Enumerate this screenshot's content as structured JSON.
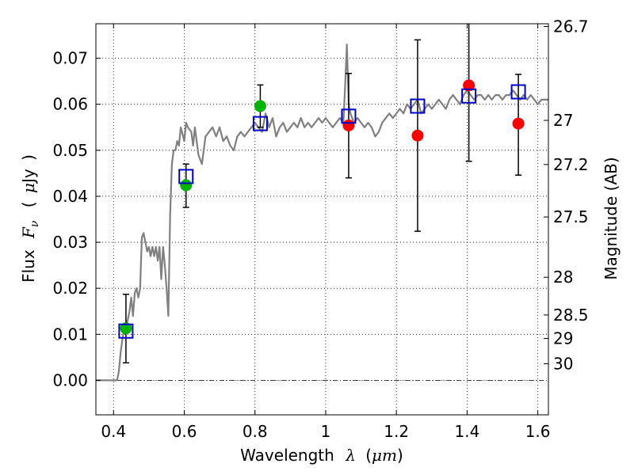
{
  "chart_data": {
    "type": "scatter",
    "xlabel": {
      "prefix": "Wavelength",
      "symbol": "λ",
      "open": "(",
      "unit": "μm",
      "close": ")"
    },
    "ylabel": {
      "prefix": "Flux",
      "symbol": "F",
      "subscript": "ν",
      "open": "(",
      "unit_mu": "μ",
      "unit": "Jy",
      "close": ")"
    },
    "ylabel_right": "Magnitude (AB)",
    "xlim": [
      0.35,
      1.63
    ],
    "ylim": [
      -0.0075,
      0.0775
    ],
    "grid": true,
    "x_ticks": [
      0.4,
      0.6,
      0.8,
      1.0,
      1.2,
      1.4,
      1.6
    ],
    "x_tick_labels": [
      "0.4",
      "0.6",
      "0.8",
      "1",
      "1.2",
      "1.4",
      "1.6"
    ],
    "y_ticks": [
      0.0,
      0.01,
      0.02,
      0.03,
      0.04,
      0.05,
      0.06,
      0.07
    ],
    "y_tick_labels": [
      "0.00",
      "0.01",
      "0.02",
      "0.03",
      "0.04",
      "0.05",
      "0.06",
      "0.07"
    ],
    "right_ticks": [
      {
        "flux": 0.0769,
        "label": "26.7"
      },
      {
        "flux": 0.0565,
        "label": "27"
      },
      {
        "flux": 0.0469,
        "label": "27.2"
      },
      {
        "flux": 0.0355,
        "label": "27.5"
      },
      {
        "flux": 0.0224,
        "label": "28"
      },
      {
        "flux": 0.0142,
        "label": "28.5"
      },
      {
        "flux": 0.0091,
        "label": "29"
      },
      {
        "flux": 0.0036,
        "label": "30"
      }
    ],
    "zero_line": 0.0,
    "colors": {
      "spectrum": "#808080",
      "model": "#0000cc",
      "green": "#00b400",
      "red": "#ff0000",
      "errorbar": "#000000",
      "grid": "#000000"
    },
    "series": [
      {
        "kind": "spectrum",
        "points": [
          [
            0.35,
            0.0
          ],
          [
            0.4,
            0.0
          ],
          [
            0.41,
            0.0
          ],
          [
            0.415,
            0.002
          ],
          [
            0.42,
            0.006
          ],
          [
            0.425,
            0.009
          ],
          [
            0.43,
            0.011
          ],
          [
            0.435,
            0.012
          ],
          [
            0.44,
            0.013
          ],
          [
            0.445,
            0.015
          ],
          [
            0.45,
            0.018
          ],
          [
            0.455,
            0.014
          ],
          [
            0.46,
            0.019
          ],
          [
            0.465,
            0.02
          ],
          [
            0.47,
            0.018
          ],
          [
            0.475,
            0.02
          ],
          [
            0.48,
            0.031
          ],
          [
            0.485,
            0.032
          ],
          [
            0.49,
            0.03
          ],
          [
            0.495,
            0.028
          ],
          [
            0.5,
            0.029
          ],
          [
            0.505,
            0.027
          ],
          [
            0.51,
            0.029
          ],
          [
            0.515,
            0.027
          ],
          [
            0.52,
            0.029
          ],
          [
            0.525,
            0.026
          ],
          [
            0.53,
            0.029
          ],
          [
            0.535,
            0.022
          ],
          [
            0.54,
            0.029
          ],
          [
            0.545,
            0.025
          ],
          [
            0.55,
            0.02
          ],
          [
            0.555,
            0.014
          ],
          [
            0.56,
            0.036
          ],
          [
            0.565,
            0.047
          ],
          [
            0.57,
            0.05
          ],
          [
            0.575,
            0.05
          ],
          [
            0.58,
            0.052
          ],
          [
            0.585,
            0.051
          ],
          [
            0.59,
            0.055
          ],
          [
            0.6,
            0.052
          ],
          [
            0.605,
            0.056
          ],
          [
            0.61,
            0.055
          ],
          [
            0.62,
            0.054
          ],
          [
            0.625,
            0.051
          ],
          [
            0.63,
            0.055
          ],
          [
            0.64,
            0.049
          ],
          [
            0.65,
            0.047
          ],
          [
            0.66,
            0.053
          ],
          [
            0.67,
            0.054
          ],
          [
            0.68,
            0.055
          ],
          [
            0.69,
            0.053
          ],
          [
            0.7,
            0.055
          ],
          [
            0.71,
            0.052
          ],
          [
            0.72,
            0.053
          ],
          [
            0.73,
            0.051
          ],
          [
            0.74,
            0.05
          ],
          [
            0.75,
            0.053
          ],
          [
            0.76,
            0.054
          ],
          [
            0.77,
            0.053
          ],
          [
            0.78,
            0.054
          ],
          [
            0.79,
            0.055
          ],
          [
            0.8,
            0.056
          ],
          [
            0.81,
            0.055
          ],
          [
            0.82,
            0.054
          ],
          [
            0.83,
            0.058
          ],
          [
            0.84,
            0.055
          ],
          [
            0.85,
            0.057
          ],
          [
            0.86,
            0.053
          ],
          [
            0.87,
            0.055
          ],
          [
            0.88,
            0.056
          ],
          [
            0.89,
            0.054
          ],
          [
            0.9,
            0.055
          ],
          [
            0.91,
            0.056
          ],
          [
            0.92,
            0.055
          ],
          [
            0.93,
            0.057
          ],
          [
            0.94,
            0.055
          ],
          [
            0.95,
            0.056
          ],
          [
            0.96,
            0.055
          ],
          [
            0.97,
            0.056
          ],
          [
            0.98,
            0.057
          ],
          [
            0.99,
            0.056
          ],
          [
            1.0,
            0.057
          ],
          [
            1.01,
            0.056
          ],
          [
            1.02,
            0.055
          ],
          [
            1.03,
            0.056
          ],
          [
            1.04,
            0.057
          ],
          [
            1.05,
            0.056
          ],
          [
            1.055,
            0.064
          ],
          [
            1.06,
            0.073
          ],
          [
            1.065,
            0.06
          ],
          [
            1.07,
            0.058
          ],
          [
            1.08,
            0.056
          ],
          [
            1.09,
            0.057
          ],
          [
            1.1,
            0.056
          ],
          [
            1.11,
            0.055
          ],
          [
            1.12,
            0.056
          ],
          [
            1.13,
            0.055
          ],
          [
            1.14,
            0.053
          ],
          [
            1.15,
            0.054
          ],
          [
            1.16,
            0.056
          ],
          [
            1.17,
            0.057
          ],
          [
            1.18,
            0.058
          ],
          [
            1.19,
            0.057
          ],
          [
            1.2,
            0.058
          ],
          [
            1.21,
            0.059
          ],
          [
            1.22,
            0.058
          ],
          [
            1.23,
            0.06
          ],
          [
            1.24,
            0.059
          ],
          [
            1.25,
            0.06
          ],
          [
            1.26,
            0.061
          ],
          [
            1.27,
            0.058
          ],
          [
            1.28,
            0.059
          ],
          [
            1.29,
            0.06
          ],
          [
            1.3,
            0.059
          ],
          [
            1.31,
            0.06
          ],
          [
            1.32,
            0.061
          ],
          [
            1.33,
            0.06
          ],
          [
            1.34,
            0.059
          ],
          [
            1.35,
            0.061
          ],
          [
            1.36,
            0.062
          ],
          [
            1.37,
            0.061
          ],
          [
            1.38,
            0.06
          ],
          [
            1.39,
            0.062
          ],
          [
            1.4,
            0.063
          ],
          [
            1.41,
            0.062
          ],
          [
            1.42,
            0.061
          ],
          [
            1.43,
            0.062
          ],
          [
            1.44,
            0.062
          ],
          [
            1.45,
            0.061
          ],
          [
            1.46,
            0.062
          ],
          [
            1.47,
            0.061
          ],
          [
            1.48,
            0.062
          ],
          [
            1.49,
            0.062
          ],
          [
            1.5,
            0.061
          ],
          [
            1.51,
            0.062
          ],
          [
            1.52,
            0.062
          ],
          [
            1.53,
            0.063
          ],
          [
            1.54,
            0.062
          ],
          [
            1.55,
            0.061
          ],
          [
            1.56,
            0.062
          ],
          [
            1.57,
            0.061
          ],
          [
            1.58,
            0.062
          ],
          [
            1.59,
            0.061
          ],
          [
            1.6,
            0.06
          ],
          [
            1.61,
            0.061
          ],
          [
            1.62,
            0.061
          ],
          [
            1.63,
            0.061
          ]
        ]
      },
      {
        "kind": "model_squares",
        "points": [
          [
            0.435,
            0.0107
          ],
          [
            0.605,
            0.0443
          ],
          [
            0.815,
            0.0558
          ],
          [
            1.065,
            0.0574
          ],
          [
            1.26,
            0.0596
          ],
          [
            1.405,
            0.0618
          ],
          [
            1.545,
            0.0627
          ]
        ]
      },
      {
        "kind": "observed_green",
        "points": [
          [
            0.435,
            0.0113
          ],
          [
            0.605,
            0.0424
          ],
          [
            0.815,
            0.0596
          ]
        ]
      },
      {
        "kind": "observed_red",
        "points": [
          [
            1.065,
            0.0554
          ],
          [
            1.26,
            0.0532
          ],
          [
            1.405,
            0.0641
          ],
          [
            1.545,
            0.0558
          ]
        ]
      },
      {
        "kind": "errorbars",
        "bars": [
          {
            "x": 0.435,
            "low": 0.0038,
            "high": 0.0187
          },
          {
            "x": 0.605,
            "low": 0.0376,
            "high": 0.047
          },
          {
            "x": 0.815,
            "low": 0.055,
            "high": 0.0642
          },
          {
            "x": 1.065,
            "low": 0.044,
            "high": 0.0667
          },
          {
            "x": 1.26,
            "low": 0.0324,
            "high": 0.074
          },
          {
            "x": 1.405,
            "low": 0.0476,
            "high": 0.079
          },
          {
            "x": 1.545,
            "low": 0.0446,
            "high": 0.0665
          }
        ]
      }
    ]
  }
}
